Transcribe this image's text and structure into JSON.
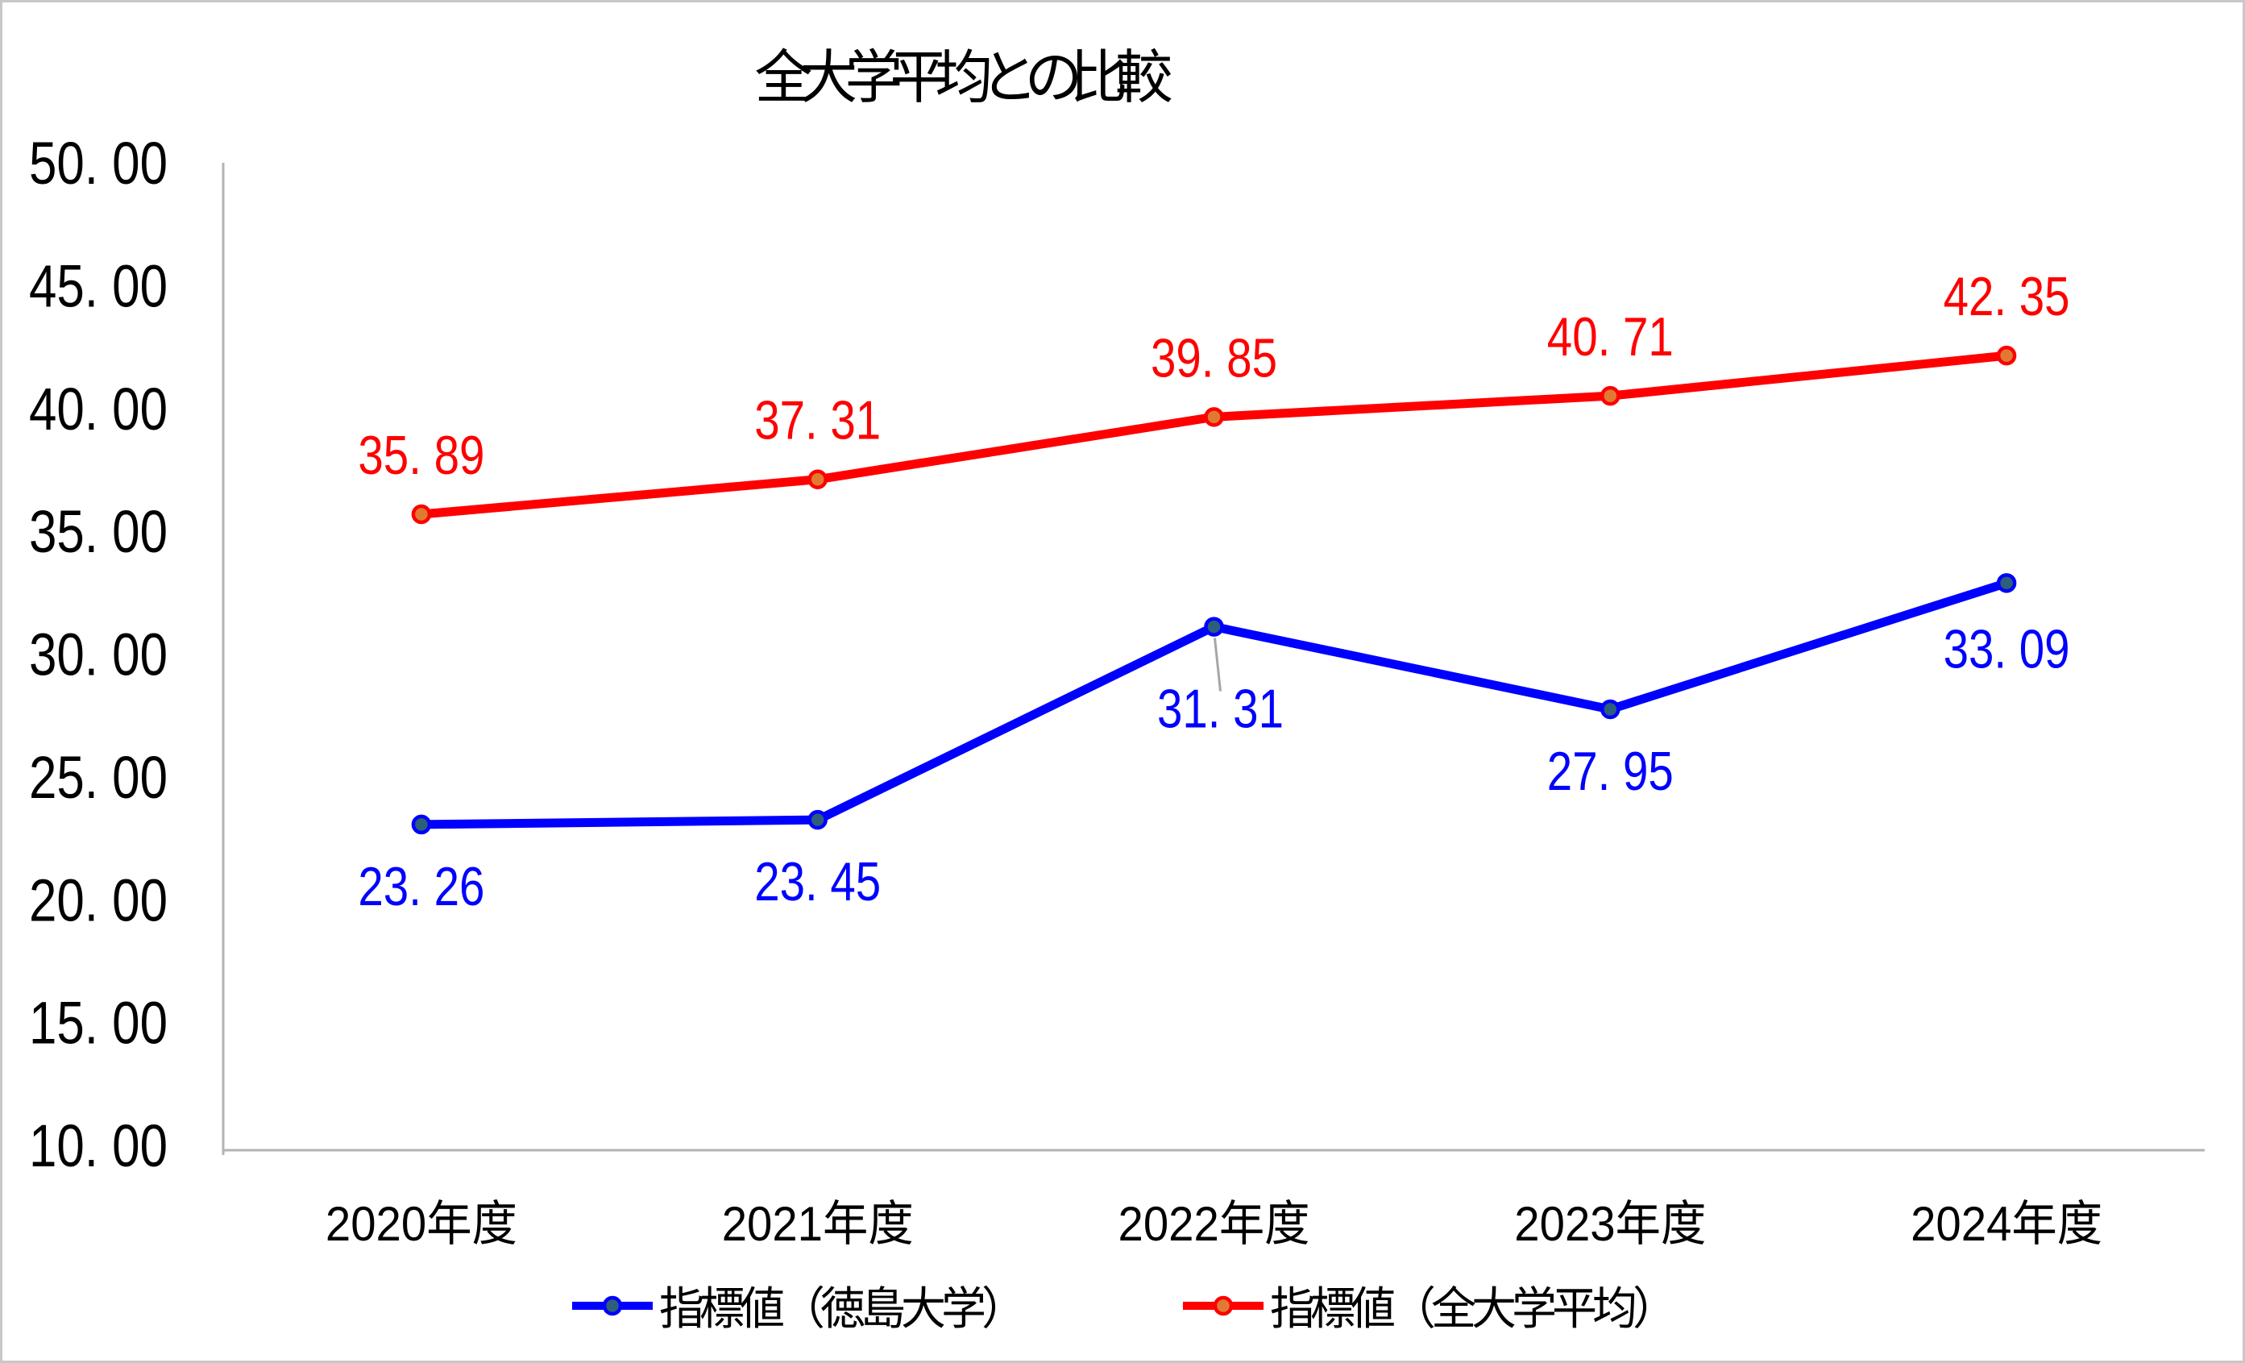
{
  "window": {
    "background": "#ffffff",
    "frame_border_color": "#c8c8c8"
  },
  "chart_data": {
    "type": "line",
    "title": "全大学平均との比較",
    "categories": [
      "2020年度",
      "2021年度",
      "2022年度",
      "2023年度",
      "2024年度"
    ],
    "series": [
      {
        "name": "指標値（徳島大学）",
        "values": [
          23.26,
          23.45,
          31.31,
          27.95,
          33.09
        ],
        "data_labels": [
          "23.26",
          "23.45",
          "31.31",
          "27.95",
          "33.09"
        ],
        "line_color": "#0000ff",
        "marker_fill": "#2d5f7a",
        "label_color": "#0000ff",
        "label_position": "below"
      },
      {
        "name": "指標値（全大学平均）",
        "values": [
          35.89,
          37.31,
          39.85,
          40.71,
          42.35
        ],
        "data_labels": [
          "35.89",
          "37.31",
          "39.85",
          "40.71",
          "42.35"
        ],
        "line_color": "#ff0000",
        "marker_fill": "#e07a33",
        "label_color": "#ff0000",
        "label_position": "above"
      }
    ],
    "xlabel": "",
    "ylabel": "",
    "ylim": [
      10,
      50
    ],
    "ytick_step": 5,
    "ytick_labels": [
      "10.00",
      "15.00",
      "20.00",
      "25.00",
      "30.00",
      "35.00",
      "40.00",
      "45.00",
      "50.00"
    ],
    "grid": false,
    "legend_position": "bottom",
    "axis_color": "#b3b3b3",
    "text_color": "#000000",
    "leader_line": {
      "series_index": 0,
      "point_index": 2,
      "color": "#a6a6a6"
    }
  }
}
